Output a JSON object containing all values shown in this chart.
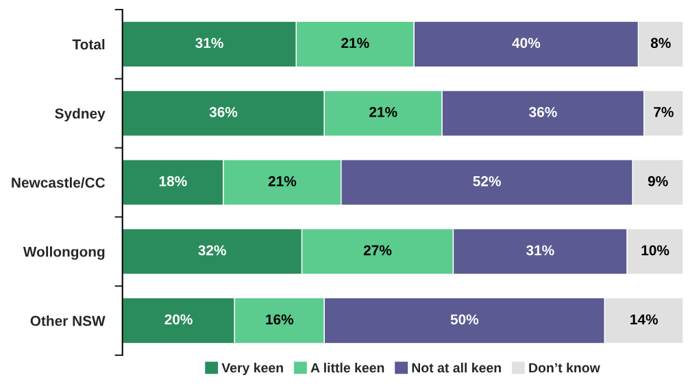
{
  "chart_data": {
    "type": "bar",
    "orientation": "horizontal",
    "stacked": true,
    "categories": [
      "Total",
      "Sydney",
      "Newcastle/CC",
      "Wollongong",
      "Other NSW"
    ],
    "series": [
      {
        "name": "Very keen",
        "color": "#2a8c5c",
        "values": [
          31,
          36,
          18,
          32,
          20
        ],
        "value_labels": [
          "31%",
          "36%",
          "18%",
          "32%",
          "20%"
        ]
      },
      {
        "name": "A little keen",
        "color": "#5ccb8e",
        "values": [
          21,
          21,
          21,
          27,
          16
        ],
        "value_labels": [
          "21%",
          "21%",
          "21%",
          "27%",
          "16%"
        ]
      },
      {
        "name": "Not at all keen",
        "color": "#5b5a92",
        "values": [
          40,
          36,
          52,
          31,
          50
        ],
        "value_labels": [
          "40%",
          "36%",
          "52%",
          "31%",
          "50%"
        ]
      },
      {
        "name": "Don’t know",
        "color": "#e0e0e0",
        "values": [
          8,
          7,
          9,
          10,
          14
        ],
        "value_labels": [
          "8%",
          "7%",
          "9%",
          "10%",
          "14%"
        ]
      }
    ],
    "tick_labels": "y",
    "legend": "bottom"
  }
}
